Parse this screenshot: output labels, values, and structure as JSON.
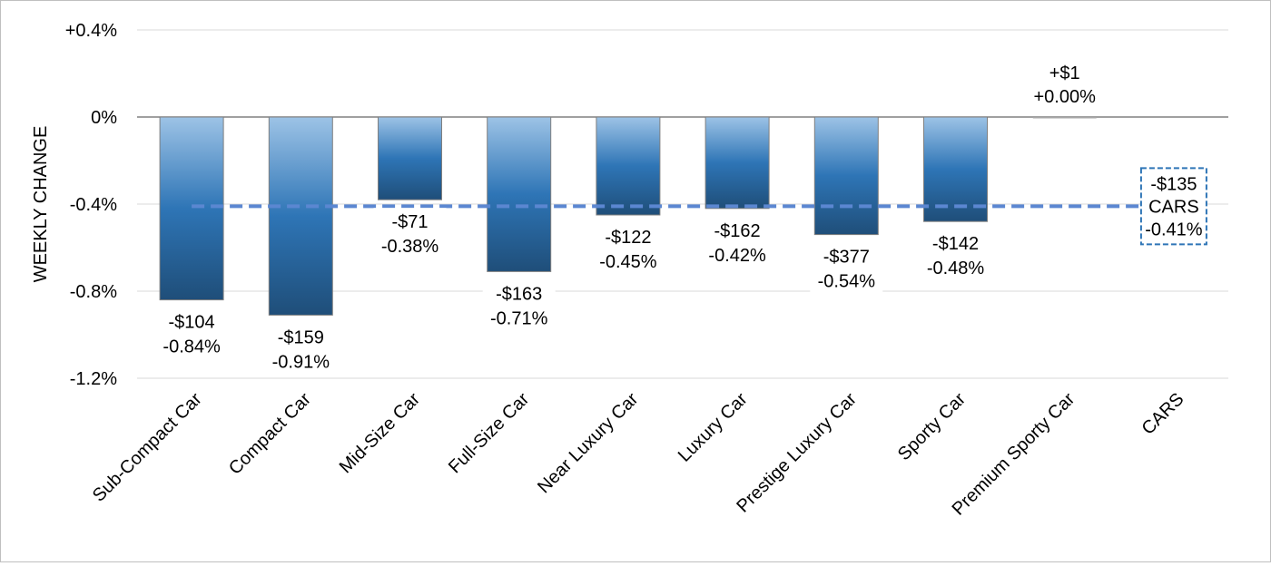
{
  "chart_data": {
    "type": "bar",
    "title": "",
    "xlabel": "",
    "ylabel": "WEEKLY CHANGE",
    "unit": "%",
    "ylim": [
      -1.2,
      0.4
    ],
    "yticks": [
      {
        "value": 0.4,
        "label": "+0.4%"
      },
      {
        "value": 0.0,
        "label": "0%"
      },
      {
        "value": -0.4,
        "label": "-0.4%"
      },
      {
        "value": -0.8,
        "label": "-0.8%"
      },
      {
        "value": -1.2,
        "label": "-1.2%"
      }
    ],
    "grid": true,
    "legend": "none",
    "categories": [
      "Sub-Compact Car",
      "Compact Car",
      "Mid-Size Car",
      "Full-Size Car",
      "Near Luxury Car",
      "Luxury Car",
      "Prestige Luxury Car",
      "Sporty Car",
      "Premium Sporty Car",
      "CARS"
    ],
    "values": [
      -0.84,
      -0.91,
      -0.38,
      -0.71,
      -0.45,
      -0.42,
      -0.54,
      -0.48,
      0.0,
      null
    ],
    "dollar_labels": [
      "-$104",
      "-$159",
      "-$71",
      "-$163",
      "-$122",
      "-$162",
      "-$377",
      "-$142",
      "+$1",
      "-$135"
    ],
    "percent_labels": [
      "-0.84%",
      "-0.91%",
      "-0.38%",
      "-0.71%",
      "-0.45%",
      "-0.42%",
      "-0.54%",
      "-0.48%",
      "+0.00%",
      "-0.41%"
    ],
    "reference": {
      "value": -0.41,
      "name": "CARS",
      "dollar_label": "-$135",
      "percent_label": "-0.41%",
      "style": "dashed"
    },
    "colors": {
      "bar_top": "#9dc3e6",
      "bar_mid": "#2e75b6",
      "bar_bottom": "#1f4e79",
      "reference_line": "#5b87d1",
      "grid": "#d9d9d9",
      "axis": "#808080"
    }
  }
}
